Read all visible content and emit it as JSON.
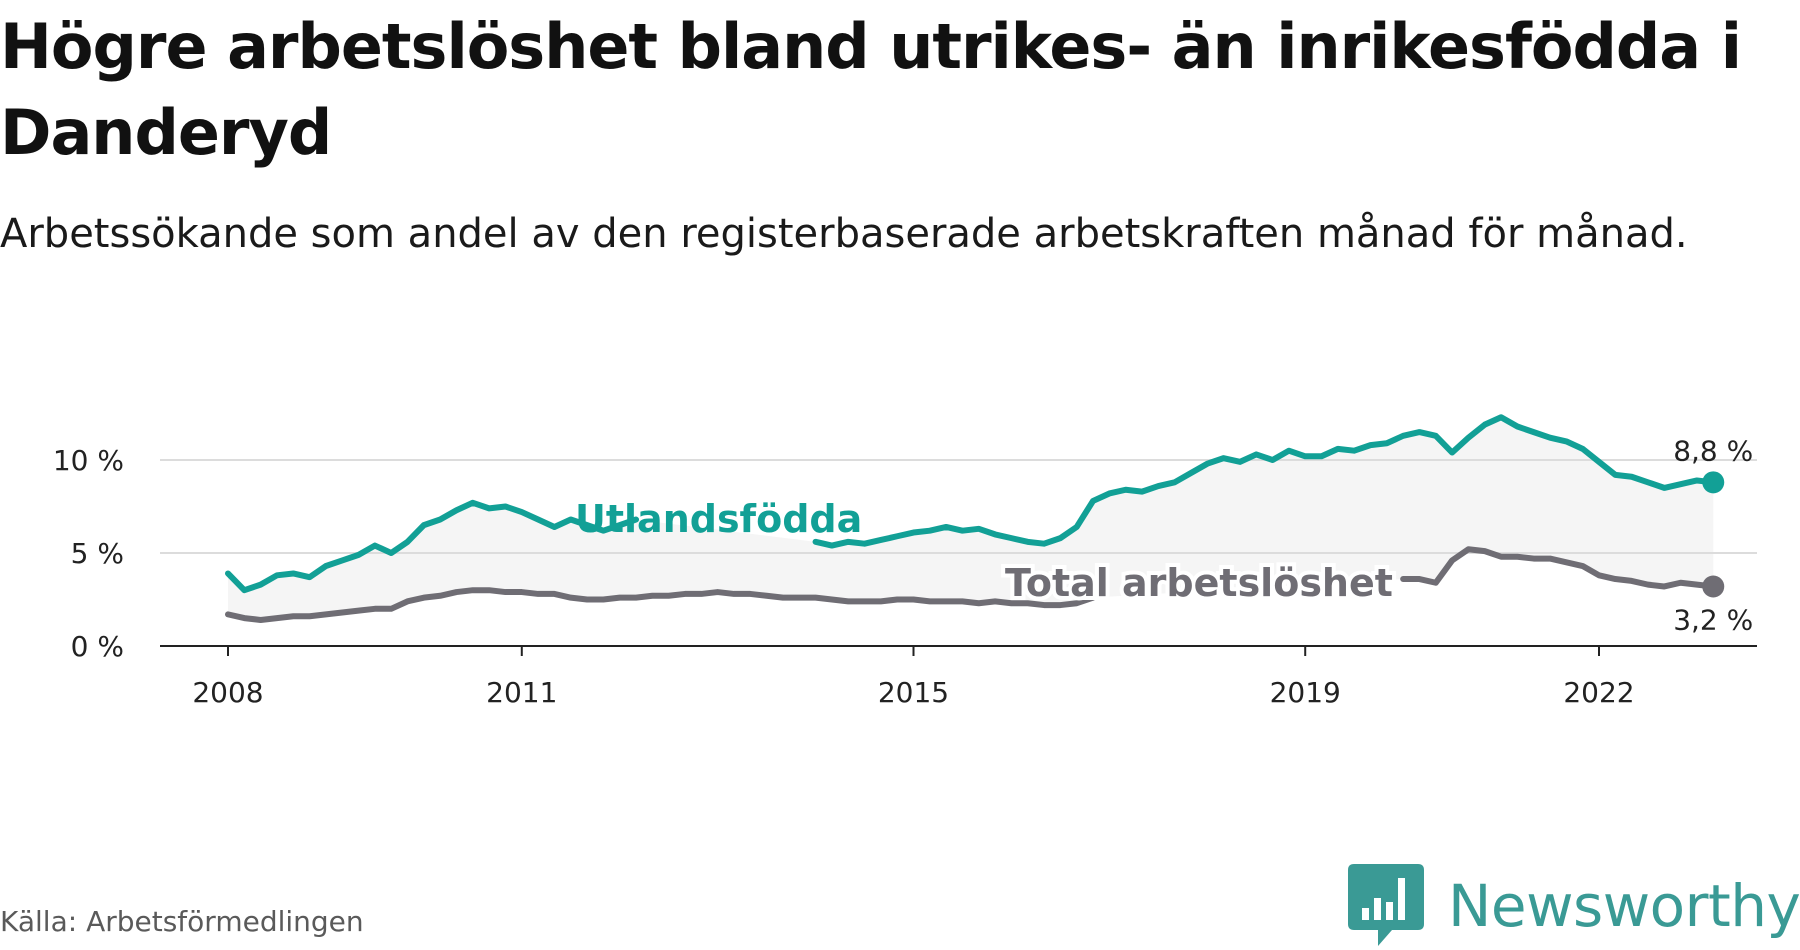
{
  "title": "Högre arbetslöshet bland utrikes- än inrikesfödda i Danderyd",
  "subtitle": "Arbetssökande som andel av den registerbaserade arbetskraften månad för månad.",
  "source": "Källa: Arbetsförmedlingen",
  "brand": {
    "name": "Newsworthy",
    "color": "#3a9a95",
    "icon": "chart-bubble-icon"
  },
  "chart_data": {
    "type": "line",
    "title": "Högre arbetslöshet bland utrikes- än inrikesfödda i Danderyd",
    "subtitle": "Arbetssökande som andel av den registerbaserade arbetskraften månad för månad.",
    "xlabel": "",
    "ylabel": "",
    "ylim": [
      0,
      12.5
    ],
    "xlim": [
      "2008-01",
      "2023-04"
    ],
    "y_ticks": [
      {
        "value": 0,
        "label": "0 %"
      },
      {
        "value": 5,
        "label": "5 %"
      },
      {
        "value": 10,
        "label": "10 %"
      }
    ],
    "x_ticks": [
      {
        "value": "2008-01",
        "label": "2008"
      },
      {
        "value": "2011-01",
        "label": "2011"
      },
      {
        "value": "2015-01",
        "label": "2015"
      },
      {
        "value": "2019-01",
        "label": "2019"
      },
      {
        "value": "2022-01",
        "label": "2022"
      }
    ],
    "grid": true,
    "band_between_series": true,
    "series": [
      {
        "name": "Utlandsfödda",
        "color": "#12a096",
        "end_label": "8,8 %",
        "points": [
          [
            "2008-01",
            3.9
          ],
          [
            "2008-03",
            3.0
          ],
          [
            "2008-05",
            3.3
          ],
          [
            "2008-07",
            3.8
          ],
          [
            "2008-09",
            3.9
          ],
          [
            "2008-11",
            3.7
          ],
          [
            "2009-01",
            4.3
          ],
          [
            "2009-03",
            4.6
          ],
          [
            "2009-05",
            4.9
          ],
          [
            "2009-07",
            5.4
          ],
          [
            "2009-09",
            5.0
          ],
          [
            "2009-11",
            5.6
          ],
          [
            "2010-01",
            6.5
          ],
          [
            "2010-03",
            6.8
          ],
          [
            "2010-05",
            7.3
          ],
          [
            "2010-07",
            7.7
          ],
          [
            "2010-09",
            7.4
          ],
          [
            "2010-11",
            7.5
          ],
          [
            "2011-01",
            7.2
          ],
          [
            "2011-03",
            6.8
          ],
          [
            "2011-05",
            6.4
          ],
          [
            "2011-07",
            6.8
          ],
          [
            "2011-09",
            6.5
          ],
          [
            "2011-11",
            6.2
          ],
          [
            "2012-01",
            6.5
          ],
          [
            "2012-03",
            6.8
          ],
          [
            "2014-01",
            5.6
          ],
          [
            "2014-03",
            5.4
          ],
          [
            "2014-05",
            5.6
          ],
          [
            "2014-07",
            5.5
          ],
          [
            "2014-09",
            5.7
          ],
          [
            "2014-11",
            5.9
          ],
          [
            "2015-01",
            6.1
          ],
          [
            "2015-03",
            6.2
          ],
          [
            "2015-05",
            6.4
          ],
          [
            "2015-07",
            6.2
          ],
          [
            "2015-09",
            6.3
          ],
          [
            "2015-11",
            6.0
          ],
          [
            "2016-01",
            5.8
          ],
          [
            "2016-03",
            5.6
          ],
          [
            "2016-05",
            5.5
          ],
          [
            "2016-07",
            5.8
          ],
          [
            "2016-09",
            6.4
          ],
          [
            "2016-11",
            7.8
          ],
          [
            "2017-01",
            8.2
          ],
          [
            "2017-03",
            8.4
          ],
          [
            "2017-05",
            8.3
          ],
          [
            "2017-07",
            8.6
          ],
          [
            "2017-09",
            8.8
          ],
          [
            "2017-11",
            9.3
          ],
          [
            "2018-01",
            9.8
          ],
          [
            "2018-03",
            10.1
          ],
          [
            "2018-05",
            9.9
          ],
          [
            "2018-07",
            10.3
          ],
          [
            "2018-09",
            10.0
          ],
          [
            "2018-11",
            10.5
          ],
          [
            "2019-01",
            10.2
          ],
          [
            "2019-03",
            10.2
          ],
          [
            "2019-05",
            10.6
          ],
          [
            "2019-07",
            10.5
          ],
          [
            "2019-09",
            10.8
          ],
          [
            "2019-11",
            10.9
          ],
          [
            "2020-01",
            11.3
          ],
          [
            "2020-03",
            11.5
          ],
          [
            "2020-05",
            11.3
          ],
          [
            "2020-07",
            10.4
          ],
          [
            "2020-09",
            11.2
          ],
          [
            "2020-11",
            11.9
          ],
          [
            "2021-01",
            12.3
          ],
          [
            "2021-03",
            11.8
          ],
          [
            "2021-05",
            11.5
          ],
          [
            "2021-07",
            11.2
          ],
          [
            "2021-09",
            11.0
          ],
          [
            "2021-11",
            10.6
          ],
          [
            "2022-01",
            9.9
          ],
          [
            "2022-03",
            9.2
          ],
          [
            "2022-05",
            9.1
          ],
          [
            "2022-07",
            8.8
          ],
          [
            "2022-09",
            8.5
          ],
          [
            "2022-11",
            8.7
          ],
          [
            "2023-01",
            8.9
          ],
          [
            "2023-03",
            8.8
          ]
        ]
      },
      {
        "name": "Total arbetslöshet",
        "color": "#6f6d74",
        "end_label": "3,2 %",
        "points": [
          [
            "2008-01",
            1.7
          ],
          [
            "2008-03",
            1.5
          ],
          [
            "2008-05",
            1.4
          ],
          [
            "2008-07",
            1.5
          ],
          [
            "2008-09",
            1.6
          ],
          [
            "2008-11",
            1.6
          ],
          [
            "2009-01",
            1.7
          ],
          [
            "2009-03",
            1.8
          ],
          [
            "2009-05",
            1.9
          ],
          [
            "2009-07",
            2.0
          ],
          [
            "2009-09",
            2.0
          ],
          [
            "2009-11",
            2.4
          ],
          [
            "2010-01",
            2.6
          ],
          [
            "2010-03",
            2.7
          ],
          [
            "2010-05",
            2.9
          ],
          [
            "2010-07",
            3.0
          ],
          [
            "2010-09",
            3.0
          ],
          [
            "2010-11",
            2.9
          ],
          [
            "2011-01",
            2.9
          ],
          [
            "2011-03",
            2.8
          ],
          [
            "2011-05",
            2.8
          ],
          [
            "2011-07",
            2.6
          ],
          [
            "2011-09",
            2.5
          ],
          [
            "2011-11",
            2.5
          ],
          [
            "2012-01",
            2.6
          ],
          [
            "2012-03",
            2.6
          ],
          [
            "2012-05",
            2.7
          ],
          [
            "2012-07",
            2.7
          ],
          [
            "2012-09",
            2.8
          ],
          [
            "2012-11",
            2.8
          ],
          [
            "2013-01",
            2.9
          ],
          [
            "2013-03",
            2.8
          ],
          [
            "2013-05",
            2.8
          ],
          [
            "2013-07",
            2.7
          ],
          [
            "2013-09",
            2.6
          ],
          [
            "2013-11",
            2.6
          ],
          [
            "2014-01",
            2.6
          ],
          [
            "2014-03",
            2.5
          ],
          [
            "2014-05",
            2.4
          ],
          [
            "2014-07",
            2.4
          ],
          [
            "2014-09",
            2.4
          ],
          [
            "2014-11",
            2.5
          ],
          [
            "2015-01",
            2.5
          ],
          [
            "2015-03",
            2.4
          ],
          [
            "2015-05",
            2.4
          ],
          [
            "2015-07",
            2.4
          ],
          [
            "2015-09",
            2.3
          ],
          [
            "2015-11",
            2.4
          ],
          [
            "2016-01",
            2.3
          ],
          [
            "2016-03",
            2.3
          ],
          [
            "2016-05",
            2.2
          ],
          [
            "2016-07",
            2.2
          ],
          [
            "2016-09",
            2.3
          ],
          [
            "2016-11",
            2.6
          ],
          [
            "2020-01",
            3.6
          ],
          [
            "2020-03",
            3.6
          ],
          [
            "2020-05",
            3.4
          ],
          [
            "2020-07",
            4.6
          ],
          [
            "2020-09",
            5.2
          ],
          [
            "2020-11",
            5.1
          ],
          [
            "2021-01",
            4.8
          ],
          [
            "2021-03",
            4.8
          ],
          [
            "2021-05",
            4.7
          ],
          [
            "2021-07",
            4.7
          ],
          [
            "2021-09",
            4.5
          ],
          [
            "2021-11",
            4.3
          ],
          [
            "2022-01",
            3.8
          ],
          [
            "2022-03",
            3.6
          ],
          [
            "2022-05",
            3.5
          ],
          [
            "2022-07",
            3.3
          ],
          [
            "2022-09",
            3.2
          ],
          [
            "2022-11",
            3.4
          ],
          [
            "2023-01",
            3.3
          ],
          [
            "2023-03",
            3.2
          ]
        ]
      }
    ]
  }
}
